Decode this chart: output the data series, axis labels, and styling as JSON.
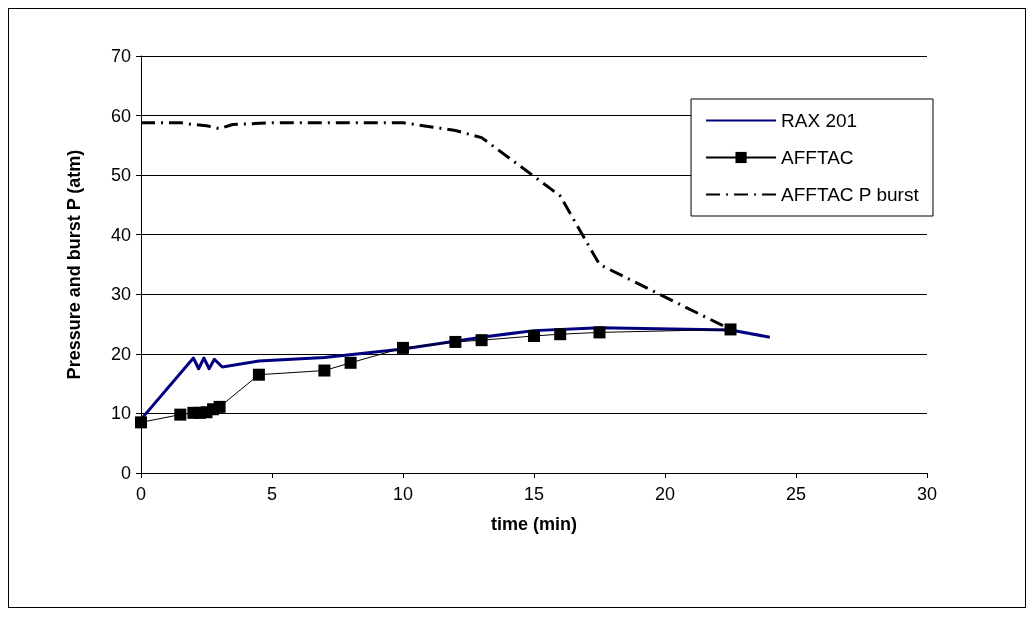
{
  "chart_data": {
    "type": "line",
    "xlabel": "time (min)",
    "ylabel": "Pressure and burst P (atm)",
    "xlim": [
      0,
      30
    ],
    "xticks": [
      0,
      5,
      10,
      15,
      20,
      25,
      30
    ],
    "ylim": [
      0,
      70
    ],
    "yticks": [
      0,
      10,
      20,
      30,
      40,
      50,
      60,
      70
    ],
    "grid": "y",
    "legend": "top right",
    "series": [
      {
        "name": "RAX 201",
        "color": "#000080",
        "marker": "none",
        "line_style": "solid",
        "x": [
          0,
          2,
          2.2,
          2.4,
          2.6,
          2.8,
          3.1,
          4.5,
          7,
          10,
          13,
          15,
          17.5,
          22.5,
          24
        ],
        "values": [
          9,
          19.3,
          17.5,
          19.3,
          17.5,
          19.1,
          17.8,
          18.8,
          19.4,
          20.8,
          22.8,
          23.9,
          24.4,
          24,
          22.8
        ]
      },
      {
        "name": "AFFTAC",
        "color": "#000000",
        "marker": "square",
        "line_style": "solid",
        "x": [
          0,
          1.5,
          2,
          2.25,
          2.5,
          2.75,
          3,
          4.5,
          7,
          8,
          10,
          12,
          13,
          15,
          16,
          17.5,
          22.5
        ],
        "values": [
          8.5,
          9.8,
          10.1,
          10.1,
          10.2,
          10.7,
          11.1,
          16.5,
          17.2,
          18.5,
          21,
          22,
          22.3,
          23,
          23.3,
          23.6,
          24.1
        ]
      },
      {
        "name": "AFFTAC P burst",
        "color": "#000000",
        "marker": "none",
        "line_style": "dashdot",
        "x": [
          0,
          1.5,
          2,
          2.5,
          3,
          3.5,
          5,
          10,
          12,
          13,
          15,
          16,
          17.5,
          22.5
        ],
        "values": [
          58.8,
          58.8,
          58.5,
          58.3,
          57.8,
          58.5,
          58.8,
          58.8,
          57.5,
          56.3,
          49.8,
          46.5,
          35,
          24.1
        ]
      }
    ]
  }
}
